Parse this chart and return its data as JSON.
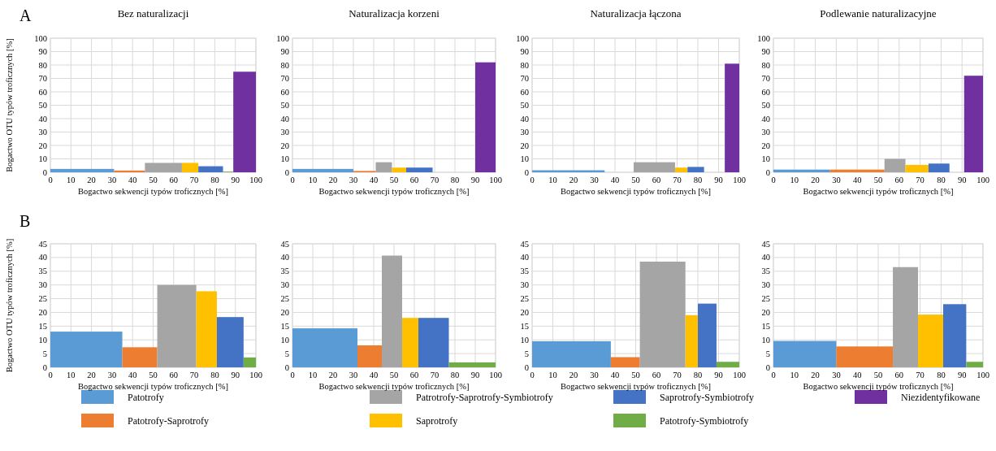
{
  "chart_data": [
    {
      "type": "histogram",
      "title": "Bez naturalizacji",
      "xlabel": "Bogactwo sekwencji typów troficznych [%]",
      "ylabel": "Bogactwo OTU  typów troficznych [%]",
      "annotations": [
        "A"
      ],
      "legend": "bottom",
      "grid": true,
      "bins": [
        0,
        31,
        46,
        64,
        72,
        84,
        89,
        100
      ],
      "series": [
        {
          "name": "Patotrofy",
          "color": "#5b9bd5",
          "values": [
            2.5,
            null,
            null,
            null,
            null,
            null,
            null
          ]
        },
        {
          "name": "Patotrofy-Saprotrofy",
          "color": "#ed7d31",
          "values": [
            null,
            1.3,
            null,
            null,
            null,
            null,
            null
          ]
        },
        {
          "name": "Patrotrofy-Saprotrofy-Symbiotrofy",
          "color": "#a5a5a5",
          "values": [
            null,
            null,
            7,
            null,
            null,
            null,
            null
          ]
        },
        {
          "name": "Saprotrofy",
          "color": "#ffc000",
          "values": [
            null,
            null,
            null,
            7,
            null,
            null,
            null
          ]
        },
        {
          "name": "Saprotrofy-Symbiotrofy",
          "color": "#4472c4",
          "values": [
            null,
            null,
            null,
            null,
            4.5,
            null,
            null
          ]
        },
        {
          "name": "Patotrofy-Symbiotrofy",
          "color": "#70ad47",
          "values": [
            null,
            null,
            null,
            null,
            null,
            0.5,
            null
          ]
        },
        {
          "name": "Niezidentyfikowane",
          "color": "#7030a0",
          "values": [
            null,
            null,
            null,
            null,
            null,
            null,
            75
          ]
        }
      ],
      "xlim": [
        0,
        100
      ],
      "xticks": [
        0,
        10,
        20,
        30,
        40,
        50,
        60,
        70,
        80,
        90,
        100
      ],
      "ylim": [
        0,
        100
      ],
      "yticks": [
        0,
        10,
        20,
        30,
        40,
        50,
        60,
        70,
        80,
        90,
        100
      ]
    },
    {
      "type": "histogram",
      "title": "Naturalizacja korzeni",
      "xlabel": "Bogactwo sekwencji typów troficznych [%]",
      "grid": true,
      "bins": [
        0,
        30,
        41,
        49,
        56,
        69,
        90,
        100
      ],
      "series": [
        {
          "color": "#5b9bd5",
          "values": [
            2.5,
            null,
            null,
            null,
            null,
            null,
            null
          ]
        },
        {
          "color": "#ed7d31",
          "values": [
            null,
            1,
            null,
            null,
            null,
            null,
            null
          ]
        },
        {
          "color": "#a5a5a5",
          "values": [
            null,
            null,
            7.5,
            null,
            null,
            null,
            null
          ]
        },
        {
          "color": "#ffc000",
          "values": [
            null,
            null,
            null,
            3.5,
            null,
            null,
            null
          ]
        },
        {
          "color": "#4472c4",
          "values": [
            null,
            null,
            null,
            null,
            3.5,
            null,
            null
          ]
        },
        {
          "color": "#7030a0",
          "values": [
            null,
            null,
            null,
            null,
            null,
            null,
            82
          ]
        }
      ],
      "xlim": [
        0,
        100
      ],
      "xticks": [
        0,
        10,
        20,
        30,
        40,
        50,
        60,
        70,
        80,
        90,
        100
      ],
      "ylim": [
        0,
        100
      ],
      "yticks": [
        0,
        10,
        20,
        30,
        40,
        50,
        60,
        70,
        80,
        90,
        100
      ]
    },
    {
      "type": "histogram",
      "title": "Naturalizacja łączona",
      "xlabel": "Bogactwo sekwencji typów troficznych [%]",
      "grid": true,
      "bins": [
        0,
        35,
        49,
        69,
        75,
        83,
        93,
        100
      ],
      "series": [
        {
          "color": "#5b9bd5",
          "values": [
            1.5,
            null,
            null,
            null,
            null,
            null,
            null
          ]
        },
        {
          "color": "#a5a5a5",
          "values": [
            null,
            null,
            7.5,
            null,
            null,
            null,
            null
          ]
        },
        {
          "color": "#ffc000",
          "values": [
            null,
            null,
            null,
            3.5,
            null,
            null,
            null
          ]
        },
        {
          "color": "#4472c4",
          "values": [
            null,
            null,
            null,
            null,
            4,
            null,
            null
          ]
        },
        {
          "color": "#7030a0",
          "values": [
            null,
            null,
            null,
            null,
            null,
            null,
            81
          ]
        }
      ],
      "xlim": [
        0,
        100
      ],
      "xticks": [
        0,
        10,
        20,
        30,
        40,
        50,
        60,
        70,
        80,
        90,
        100
      ],
      "ylim": [
        0,
        100
      ],
      "yticks": [
        0,
        10,
        20,
        30,
        40,
        50,
        60,
        70,
        80,
        90,
        100
      ]
    },
    {
      "type": "histogram",
      "title": "Podlewanie naturalizacyjne",
      "xlabel": "Bogactwo sekwencji typów troficznych [%]",
      "grid": true,
      "bins": [
        0,
        27,
        53,
        63,
        74,
        84,
        91,
        100
      ],
      "series": [
        {
          "color": "#5b9bd5",
          "values": [
            2,
            null,
            null,
            null,
            null,
            null,
            null
          ]
        },
        {
          "color": "#ed7d31",
          "values": [
            null,
            2,
            null,
            null,
            null,
            null,
            null
          ]
        },
        {
          "color": "#a5a5a5",
          "values": [
            null,
            null,
            10,
            null,
            null,
            null,
            null
          ]
        },
        {
          "color": "#ffc000",
          "values": [
            null,
            null,
            null,
            5.5,
            null,
            null,
            null
          ]
        },
        {
          "color": "#4472c4",
          "values": [
            null,
            null,
            null,
            null,
            6.5,
            null,
            null
          ]
        },
        {
          "color": "#7030a0",
          "values": [
            null,
            null,
            null,
            null,
            null,
            null,
            72
          ]
        }
      ],
      "xlim": [
        0,
        100
      ],
      "xticks": [
        0,
        10,
        20,
        30,
        40,
        50,
        60,
        70,
        80,
        90,
        100
      ],
      "ylim": [
        0,
        100
      ],
      "yticks": [
        0,
        10,
        20,
        30,
        40,
        50,
        60,
        70,
        80,
        90,
        100
      ]
    },
    {
      "type": "histogram",
      "xlabel": "Bogactwo sekwencji typów troficznych [%]",
      "ylabel": "Bogactwo OTU  typów troficznych [%]",
      "annotations": [
        "B"
      ],
      "grid": true,
      "bins": [
        0,
        35,
        52,
        71,
        81,
        94,
        100
      ],
      "series": [
        {
          "color": "#5b9bd5",
          "values": [
            13,
            null,
            null,
            null,
            null,
            null
          ]
        },
        {
          "color": "#ed7d31",
          "values": [
            null,
            7.3,
            null,
            null,
            null,
            null
          ]
        },
        {
          "color": "#a5a5a5",
          "values": [
            null,
            null,
            30,
            null,
            null,
            null
          ]
        },
        {
          "color": "#ffc000",
          "values": [
            null,
            null,
            null,
            27.7,
            null,
            null
          ]
        },
        {
          "color": "#4472c4",
          "values": [
            null,
            null,
            null,
            null,
            18.3,
            null
          ]
        },
        {
          "color": "#70ad47",
          "values": [
            null,
            null,
            null,
            null,
            null,
            3.6
          ]
        }
      ],
      "xlim": [
        0,
        100
      ],
      "xticks": [
        0,
        10,
        20,
        30,
        40,
        50,
        60,
        70,
        80,
        90,
        100
      ],
      "ylim": [
        0,
        45
      ],
      "yticks": [
        0,
        5,
        10,
        15,
        20,
        25,
        30,
        35,
        40,
        45
      ]
    },
    {
      "type": "histogram",
      "xlabel": "Bogactwo sekwencji typów troficznych [%]",
      "grid": true,
      "bins": [
        0,
        32,
        44,
        54,
        62,
        77,
        100
      ],
      "series": [
        {
          "color": "#5b9bd5",
          "values": [
            14.2,
            null,
            null,
            null,
            null,
            null
          ]
        },
        {
          "color": "#ed7d31",
          "values": [
            null,
            8,
            null,
            null,
            null,
            null
          ]
        },
        {
          "color": "#a5a5a5",
          "values": [
            null,
            null,
            40.7,
            null,
            null,
            null
          ]
        },
        {
          "color": "#ffc000",
          "values": [
            null,
            null,
            null,
            18,
            null,
            null
          ]
        },
        {
          "color": "#4472c4",
          "values": [
            null,
            null,
            null,
            null,
            18,
            null
          ]
        },
        {
          "color": "#70ad47",
          "values": [
            null,
            null,
            null,
            null,
            null,
            1.8
          ]
        }
      ],
      "xlim": [
        0,
        100
      ],
      "xticks": [
        0,
        10,
        20,
        30,
        40,
        50,
        60,
        70,
        80,
        90,
        100
      ],
      "ylim": [
        0,
        45
      ],
      "yticks": [
        0,
        5,
        10,
        15,
        20,
        25,
        30,
        35,
        40,
        45
      ]
    },
    {
      "type": "histogram",
      "xlabel": "Bogactwo sekwencji typów troficznych [%]",
      "grid": true,
      "bins": [
        0,
        38,
        52,
        74,
        80,
        89,
        100
      ],
      "series": [
        {
          "color": "#5b9bd5",
          "values": [
            9.5,
            null,
            null,
            null,
            null,
            null
          ]
        },
        {
          "color": "#ed7d31",
          "values": [
            null,
            3.7,
            null,
            null,
            null,
            null
          ]
        },
        {
          "color": "#a5a5a5",
          "values": [
            null,
            null,
            38.5,
            null,
            null,
            null
          ]
        },
        {
          "color": "#ffc000",
          "values": [
            null,
            null,
            null,
            19,
            null,
            null
          ]
        },
        {
          "color": "#4472c4",
          "values": [
            null,
            null,
            null,
            null,
            23.2,
            null
          ]
        },
        {
          "color": "#70ad47",
          "values": [
            null,
            null,
            null,
            null,
            null,
            2
          ]
        }
      ],
      "xlim": [
        0,
        100
      ],
      "xticks": [
        0,
        10,
        20,
        30,
        40,
        50,
        60,
        70,
        80,
        90,
        100
      ],
      "ylim": [
        0,
        45
      ],
      "yticks": [
        0,
        5,
        10,
        15,
        20,
        25,
        30,
        35,
        40,
        45
      ]
    },
    {
      "type": "histogram",
      "xlabel": "Bogactwo sekwencji typów troficznych [%]",
      "grid": true,
      "bins": [
        0,
        30,
        57,
        69,
        81,
        92,
        100
      ],
      "series": [
        {
          "color": "#5b9bd5",
          "values": [
            9.6,
            null,
            null,
            null,
            null,
            null
          ]
        },
        {
          "color": "#ed7d31",
          "values": [
            null,
            7.6,
            null,
            null,
            null,
            null
          ]
        },
        {
          "color": "#a5a5a5",
          "values": [
            null,
            null,
            36.5,
            null,
            null,
            null
          ]
        },
        {
          "color": "#ffc000",
          "values": [
            null,
            null,
            null,
            19.2,
            null,
            null
          ]
        },
        {
          "color": "#4472c4",
          "values": [
            null,
            null,
            null,
            null,
            23,
            null
          ]
        },
        {
          "color": "#70ad47",
          "values": [
            null,
            null,
            null,
            null,
            null,
            2
          ]
        }
      ],
      "xlim": [
        0,
        100
      ],
      "xticks": [
        0,
        10,
        20,
        30,
        40,
        50,
        60,
        70,
        80,
        90,
        100
      ],
      "ylim": [
        0,
        45
      ],
      "yticks": [
        0,
        5,
        10,
        15,
        20,
        25,
        30,
        35,
        40,
        45
      ]
    }
  ]
}
